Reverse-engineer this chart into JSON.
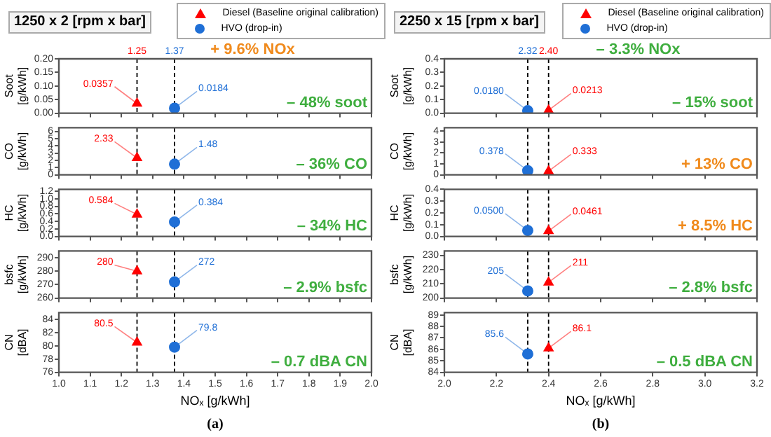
{
  "chart_data": [
    {
      "type": "scatter",
      "title": "1250 x 2 [rpm x bar]",
      "subtitle": "+ 9.6% NOx",
      "legend": "top right",
      "ylabel": "Soot [g/kWh]",
      "tick_labels": "y",
      "series": [
        {
          "name": "Diesel (Baseline original calibration)",
          "color": "#ff0000",
          "marker": "triangle",
          "x": [
            1.25
          ],
          "values": [
            0.0357
          ],
          "value_labels": [
            "0.0357"
          ]
        },
        {
          "name": "HVO (drop-in)",
          "color": "#1f6fd6",
          "marker": "circle",
          "x": [
            1.37
          ],
          "values": [
            0.0184
          ],
          "value_labels": [
            "0.0184"
          ]
        }
      ],
      "xlim": [
        1.0,
        2.0
      ],
      "xticks": [
        1,
        1.1,
        1.2,
        1.3,
        1.4,
        1.5,
        1.6,
        1.7,
        1.8,
        1.9,
        2
      ],
      "ylim": [
        0,
        0.2
      ],
      "yticks": [
        {
          "value": 0,
          "label": "0.00"
        },
        0.05,
        {
          "value": 0.1,
          "label": "0.10"
        },
        0.15,
        {
          "value": 0.2,
          "label": "0.20"
        }
      ],
      "ref_lines": [
        {
          "axis": "x",
          "value": 1.25,
          "label": "1.25",
          "color": "#000000",
          "line_style": "dashed"
        },
        {
          "axis": "x",
          "value": 1.37,
          "label": "1.37",
          "color": "#000000",
          "line_style": "dashed"
        }
      ],
      "annotations": [
        "– 48% soot"
      ]
    },
    {
      "type": "scatter",
      "ylabel": "CO [g/kWh]",
      "tick_labels": "y",
      "series": [
        {
          "color": "#ff0000",
          "marker": "triangle",
          "x": [
            1.25
          ],
          "values": [
            2.33
          ],
          "value_labels": [
            "2.33"
          ]
        },
        {
          "color": "#1f6fd6",
          "marker": "circle",
          "x": [
            1.37
          ],
          "values": [
            1.48
          ],
          "value_labels": [
            "1.48"
          ]
        }
      ],
      "xlim": [
        1.0,
        2.0
      ],
      "xticks": [
        1,
        1.1,
        1.2,
        1.3,
        1.4,
        1.5,
        1.6,
        1.7,
        1.8,
        1.9,
        2
      ],
      "ylim": [
        0,
        6.5
      ],
      "yticks": [
        0,
        1,
        2,
        3,
        4,
        5,
        6
      ],
      "ref_lines": [
        {
          "axis": "x",
          "value": 1.25,
          "color": "#000000",
          "line_style": "dashed"
        },
        {
          "axis": "x",
          "value": 1.37,
          "color": "#000000",
          "line_style": "dashed"
        }
      ],
      "annotations": [
        "– 36% CO"
      ]
    },
    {
      "type": "scatter",
      "ylabel": "HC [g/kWh]",
      "tick_labels": "y",
      "series": [
        {
          "color": "#ff0000",
          "marker": "triangle",
          "x": [
            1.25
          ],
          "values": [
            0.584
          ],
          "value_labels": [
            "0.584"
          ]
        },
        {
          "color": "#1f6fd6",
          "marker": "circle",
          "x": [
            1.37
          ],
          "values": [
            0.384
          ],
          "value_labels": [
            "0.384"
          ]
        }
      ],
      "xlim": [
        1.0,
        2.0
      ],
      "xticks": [
        1,
        1.1,
        1.2,
        1.3,
        1.4,
        1.5,
        1.6,
        1.7,
        1.8,
        1.9,
        2
      ],
      "ylim": [
        0,
        1.25
      ],
      "yticks": [
        {
          "value": 0,
          "label": "0.0"
        },
        0.2,
        0.4,
        0.6,
        0.8,
        {
          "value": 1,
          "label": "1.0"
        },
        1.2
      ],
      "ref_lines": [
        {
          "axis": "x",
          "value": 1.25,
          "color": "#000000",
          "line_style": "dashed"
        },
        {
          "axis": "x",
          "value": 1.37,
          "color": "#000000",
          "line_style": "dashed"
        }
      ],
      "annotations": [
        "– 34% HC"
      ]
    },
    {
      "type": "scatter",
      "ylabel": "bsfc [g/kWh]",
      "tick_labels": "y",
      "series": [
        {
          "color": "#ff0000",
          "marker": "triangle",
          "x": [
            1.25
          ],
          "values": [
            280
          ],
          "value_labels": [
            "280"
          ]
        },
        {
          "color": "#1f6fd6",
          "marker": "circle",
          "x": [
            1.37
          ],
          "values": [
            272
          ],
          "value_labels": [
            "272"
          ]
        }
      ],
      "xlim": [
        1.0,
        2.0
      ],
      "xticks": [
        1,
        1.1,
        1.2,
        1.3,
        1.4,
        1.5,
        1.6,
        1.7,
        1.8,
        1.9,
        2
      ],
      "ylim": [
        260,
        295
      ],
      "yticks": [
        260,
        270,
        280,
        290
      ],
      "ref_lines": [
        {
          "axis": "x",
          "value": 1.25,
          "color": "#000000",
          "line_style": "dashed"
        },
        {
          "axis": "x",
          "value": 1.37,
          "color": "#000000",
          "line_style": "dashed"
        }
      ],
      "annotations": [
        "– 2.9% bsfc"
      ]
    },
    {
      "type": "scatter",
      "ylabel": "CN [dBA]",
      "xlabel": "NOₓ [g/kWh]",
      "series": [
        {
          "color": "#ff0000",
          "marker": "triangle",
          "x": [
            1.25
          ],
          "values": [
            80.5
          ],
          "value_labels": [
            "80.5"
          ]
        },
        {
          "color": "#1f6fd6",
          "marker": "circle",
          "x": [
            1.37
          ],
          "values": [
            79.8
          ],
          "value_labels": [
            "79.8"
          ]
        }
      ],
      "xlim": [
        1.0,
        2.0
      ],
      "xticks": [
        {
          "value": 1,
          "label": "1.0"
        },
        1.1,
        1.2,
        1.3,
        1.4,
        1.5,
        1.6,
        1.7,
        1.8,
        1.9,
        {
          "value": 2,
          "label": "2.0"
        }
      ],
      "ylim": [
        76,
        85
      ],
      "yticks": [
        76,
        78,
        80,
        82,
        84
      ],
      "ref_lines": [
        {
          "axis": "x",
          "value": 1.25,
          "color": "#000000",
          "line_style": "dashed"
        },
        {
          "axis": "x",
          "value": 1.37,
          "color": "#000000",
          "line_style": "dashed"
        }
      ],
      "annotations": [
        "– 0.7 dBA CN",
        "(a)"
      ]
    },
    {
      "type": "scatter",
      "title": "2250 x 15 [rpm x bar]",
      "subtitle": "– 3.3% NOx",
      "legend": "top right",
      "ylabel": "Soot [g/kWh]",
      "tick_labels": "y",
      "series": [
        {
          "name": "Diesel (Baseline original calibration)",
          "color": "#ff0000",
          "marker": "triangle",
          "x": [
            2.4
          ],
          "values": [
            0.0213
          ],
          "value_labels": [
            "0.0213"
          ]
        },
        {
          "name": "HVO (drop-in)",
          "color": "#1f6fd6",
          "marker": "circle",
          "x": [
            2.32
          ],
          "values": [
            0.018
          ],
          "value_labels": [
            "0.0180"
          ]
        }
      ],
      "xlim": [
        2.0,
        3.2
      ],
      "xticks": [
        2,
        2.2,
        2.4,
        2.6,
        2.8,
        3,
        3.2
      ],
      "ylim": [
        0,
        0.4
      ],
      "yticks": [
        {
          "value": 0,
          "label": "0.0"
        },
        0.1,
        0.2,
        0.3,
        0.4
      ],
      "ref_lines": [
        {
          "axis": "x",
          "value": 2.32,
          "label": "2.32",
          "color": "#000000",
          "line_style": "dashed"
        },
        {
          "axis": "x",
          "value": 2.4,
          "label": "2.40",
          "color": "#000000",
          "line_style": "dashed"
        }
      ],
      "annotations": [
        "– 15% soot"
      ]
    },
    {
      "type": "scatter",
      "ylabel": "CO [g/kWh]",
      "tick_labels": "y",
      "series": [
        {
          "color": "#ff0000",
          "marker": "triangle",
          "x": [
            2.4
          ],
          "values": [
            0.333
          ],
          "value_labels": [
            "0.333"
          ]
        },
        {
          "color": "#1f6fd6",
          "marker": "circle",
          "x": [
            2.32
          ],
          "values": [
            0.378
          ],
          "value_labels": [
            "0.378"
          ]
        }
      ],
      "xlim": [
        2.0,
        3.2
      ],
      "xticks": [
        2,
        2.2,
        2.4,
        2.6,
        2.8,
        3,
        3.2
      ],
      "ylim": [
        0,
        4.3
      ],
      "yticks": [
        0,
        1,
        2,
        3,
        4
      ],
      "ref_lines": [
        {
          "axis": "x",
          "value": 2.32,
          "color": "#000000",
          "line_style": "dashed"
        },
        {
          "axis": "x",
          "value": 2.4,
          "color": "#000000",
          "line_style": "dashed"
        }
      ],
      "annotations": [
        "+ 13% CO"
      ]
    },
    {
      "type": "scatter",
      "ylabel": "HC [g/kWh]",
      "tick_labels": "y",
      "series": [
        {
          "color": "#ff0000",
          "marker": "triangle",
          "x": [
            2.4
          ],
          "values": [
            0.0461
          ],
          "value_labels": [
            "0.0461"
          ]
        },
        {
          "color": "#1f6fd6",
          "marker": "circle",
          "x": [
            2.32
          ],
          "values": [
            0.05
          ],
          "value_labels": [
            "0.0500"
          ]
        }
      ],
      "xlim": [
        2.0,
        3.2
      ],
      "xticks": [
        2,
        2.2,
        2.4,
        2.6,
        2.8,
        3,
        3.2
      ],
      "ylim": [
        0,
        0.4
      ],
      "yticks": [
        {
          "value": 0,
          "label": "0.0"
        },
        0.1,
        0.2,
        0.3,
        0.4
      ],
      "ref_lines": [
        {
          "axis": "x",
          "value": 2.32,
          "color": "#000000",
          "line_style": "dashed"
        },
        {
          "axis": "x",
          "value": 2.4,
          "color": "#000000",
          "line_style": "dashed"
        }
      ],
      "annotations": [
        "+ 8.5% HC"
      ]
    },
    {
      "type": "scatter",
      "ylabel": "bsfc [g/kWh]",
      "tick_labels": "y",
      "series": [
        {
          "color": "#ff0000",
          "marker": "triangle",
          "x": [
            2.4
          ],
          "values": [
            211
          ],
          "value_labels": [
            "211"
          ]
        },
        {
          "color": "#1f6fd6",
          "marker": "circle",
          "x": [
            2.32
          ],
          "values": [
            205
          ],
          "value_labels": [
            "205"
          ]
        }
      ],
      "xlim": [
        2.0,
        3.2
      ],
      "xticks": [
        2,
        2.2,
        2.4,
        2.6,
        2.8,
        3,
        3.2
      ],
      "ylim": [
        200,
        233
      ],
      "yticks": [
        200,
        210,
        220,
        230
      ],
      "ref_lines": [
        {
          "axis": "x",
          "value": 2.32,
          "color": "#000000",
          "line_style": "dashed"
        },
        {
          "axis": "x",
          "value": 2.4,
          "color": "#000000",
          "line_style": "dashed"
        }
      ],
      "annotations": [
        "– 2.8% bsfc"
      ]
    },
    {
      "type": "scatter",
      "ylabel": "CN [dBA]",
      "xlabel": "NOₓ [g/kWh]",
      "series": [
        {
          "color": "#ff0000",
          "marker": "triangle",
          "x": [
            2.4
          ],
          "values": [
            86.1
          ],
          "value_labels": [
            "86.1"
          ]
        },
        {
          "color": "#1f6fd6",
          "marker": "circle",
          "x": [
            2.32
          ],
          "values": [
            85.6
          ],
          "value_labels": [
            "85.6"
          ]
        }
      ],
      "xlim": [
        2.0,
        3.2
      ],
      "xticks": [
        {
          "value": 2,
          "label": "2.0"
        },
        2.2,
        2.4,
        2.6,
        2.8,
        {
          "value": 3,
          "label": "3.0"
        },
        3.2
      ],
      "ylim": [
        84,
        89.2
      ],
      "yticks": [
        84,
        85,
        86,
        87,
        88,
        89
      ],
      "ref_lines": [
        {
          "axis": "x",
          "value": 2.32,
          "color": "#000000",
          "line_style": "dashed"
        },
        {
          "axis": "x",
          "value": 2.4,
          "color": "#000000",
          "line_style": "dashed"
        }
      ],
      "annotations": [
        "– 0.5 dBA CN",
        "(b)"
      ]
    }
  ]
}
